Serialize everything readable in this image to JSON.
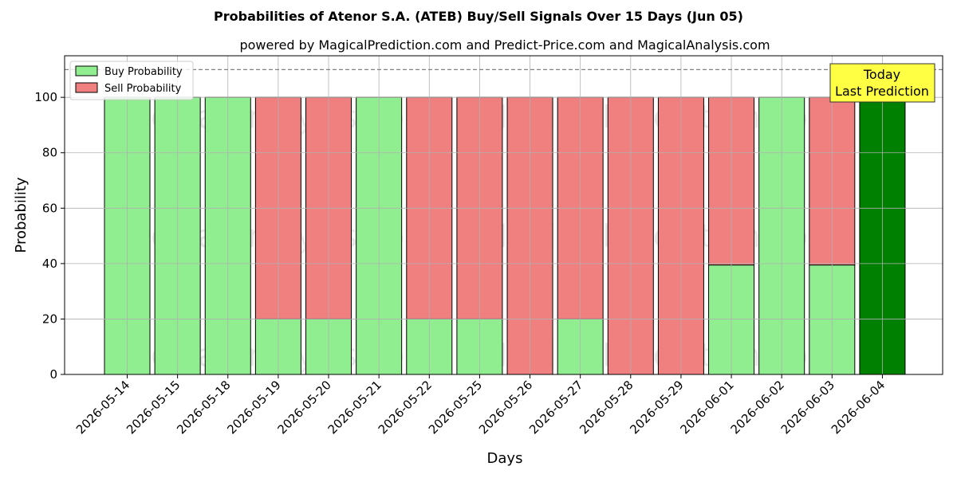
{
  "chart_data": {
    "type": "bar",
    "title": "Probabilities of Atenor S.A. (ATEB) Buy/Sell Signals Over 15 Days (Jun 05)",
    "subtitle": "powered by MagicalPrediction.com and Predict-Price.com and MagicalAnalysis.com",
    "xlabel": "Days",
    "ylabel": "Probability",
    "ylim": [
      0,
      115
    ],
    "yticks": [
      0,
      20,
      40,
      60,
      80,
      100
    ],
    "reference_line": 110,
    "grid": true,
    "stacked": true,
    "legend_position": "top-left",
    "categories": [
      "2026-05-14",
      "2026-05-15",
      "2026-05-18",
      "2026-05-19",
      "2026-05-20",
      "2026-05-21",
      "2026-05-22",
      "2026-05-25",
      "2026-05-26",
      "2026-05-27",
      "2026-05-28",
      "2026-05-29",
      "2026-06-01",
      "2026-06-02",
      "2026-06-03",
      "2026-06-04"
    ],
    "series": [
      {
        "name": "Buy Probability",
        "color": "#90ee90",
        "values": [
          100,
          100,
          100,
          20,
          20,
          100,
          20,
          20,
          0,
          20,
          0,
          0,
          39.5,
          100,
          39.5,
          100
        ]
      },
      {
        "name": "Sell Probability",
        "color": "#f08080",
        "values": [
          0,
          0,
          0,
          80,
          80,
          0,
          80,
          80,
          100,
          80,
          100,
          100,
          60.5,
          0,
          60.5,
          0
        ]
      }
    ],
    "highlight": {
      "index": 15,
      "color": "#008000"
    },
    "annotation": {
      "line1": "Today",
      "line2": "Last Prediction",
      "background": "#ffff44"
    },
    "watermarks": [
      "MagicalAnalysis.com",
      "MagicalPrediction.com"
    ]
  }
}
